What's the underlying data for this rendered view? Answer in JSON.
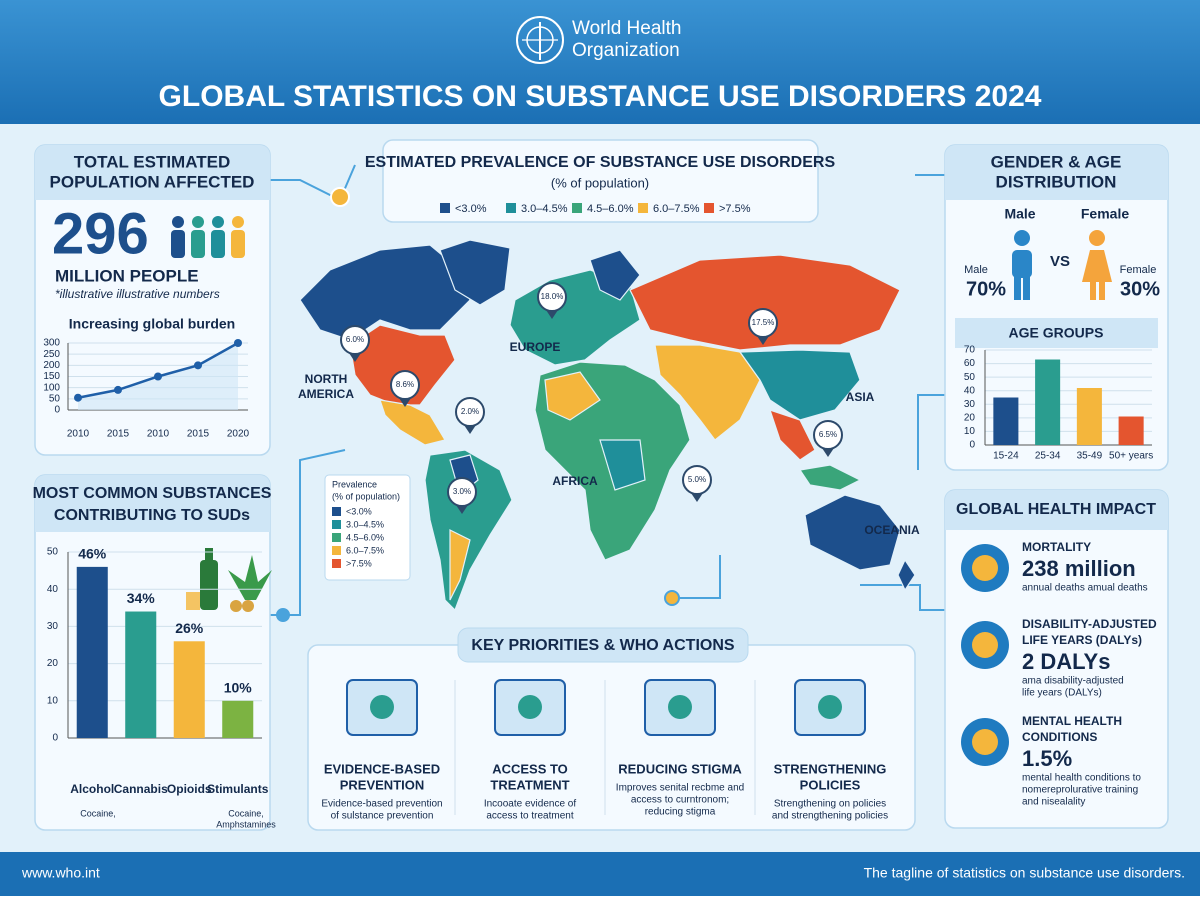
{
  "header": {
    "logo_lines": [
      "World Health",
      "Organization"
    ],
    "title": "GLOBAL STATISTICS ON SUBSTANCE USE DISORDERS 2024"
  },
  "total": {
    "title_lines": [
      "TOTAL ESTIMATED",
      "POPULATION AFFECTED"
    ],
    "number": "296",
    "unit": "MILLION PEOPLE",
    "note": "*illustrative illustrative numbers"
  },
  "substances": {
    "title_lines": [
      "MOST COMMON SUBSTANCES",
      "CONTRIBUTING TO SUDs"
    ],
    "stimulant_note_lines": [
      "Cocaine,",
      "Amphstamines"
    ]
  },
  "map": {
    "title": "ESTIMATED PREVALENCE OF SUBSTANCE USE DISORDERS",
    "subtitle": "(% of population)",
    "legend": [
      {
        "label": "<3.0%",
        "color": "#1d4f8c"
      },
      {
        "label": "3.0–4.5%",
        "color": "#1f8f9a"
      },
      {
        "label": "4.5–6.0%",
        "color": "#3aa57a"
      },
      {
        "label": "6.0–7.5%",
        "color": "#f4b63c"
      },
      {
        "label": ">7.5%",
        "color": "#e4552f"
      }
    ],
    "legend2_title_lines": [
      "Prevalence",
      "(% of population)"
    ],
    "regions": [
      "NORTH",
      "AMERICA",
      "EUROPE",
      "ASIA",
      "AFRICA",
      "OCEANIA"
    ],
    "pins": [
      "6.0%",
      "8.6%",
      "2.0%",
      "18.0%",
      "17.5%",
      "5.0%",
      "3.0%",
      "6.5%"
    ]
  },
  "gender": {
    "title_lines": [
      "GENDER & AGE",
      "DISTRIBUTION"
    ],
    "male": "Male",
    "female": "Female",
    "vs": "VS",
    "male_small": "Male",
    "male_share": "70%",
    "female_small": "Female",
    "female_share": "30%"
  },
  "impact": {
    "title": "GLOBAL HEALTH IMPACT",
    "items": [
      {
        "title_lines": [
          "MORTALITY"
        ],
        "value": "238 million",
        "desc_lines": [
          "annual deaths amual deaths"
        ]
      },
      {
        "title_lines": [
          "DISABILITY-ADJUSTED",
          "LIFE YEARS (DALYs)"
        ],
        "value": "2 DALYs",
        "desc_lines": [
          "ama disability-adjusted",
          "life years (DALYs)"
        ]
      },
      {
        "title_lines": [
          "MENTAL HEALTH",
          "CONDITIONS"
        ],
        "value": "1.5%",
        "desc_lines": [
          "mental health conditions to",
          "nomereprolurative training",
          "and nisealality"
        ]
      }
    ]
  },
  "priorities": {
    "title": "KEY PRIORITIES & WHO ACTIONS",
    "items": [
      {
        "title_lines": [
          "EVIDENCE-BASED",
          "PREVENTION"
        ],
        "desc_lines": [
          "Evidence-based prevention",
          "of sulstance prevention"
        ]
      },
      {
        "title_lines": [
          "ACCESS TO",
          "TREATMENT"
        ],
        "desc_lines": [
          "Incooate evidence of",
          "access to treatment"
        ]
      },
      {
        "title_lines": [
          "REDUCING STIGMA"
        ],
        "desc_lines": [
          "Improves senital recbme and",
          "access to curntronom;",
          "reducing stigma"
        ]
      },
      {
        "title_lines": [
          "STRENGTHENING",
          "POLICIES"
        ],
        "desc_lines": [
          "Strengthening on policies",
          "and strengthening policies"
        ]
      }
    ]
  },
  "footer": {
    "url": "www.who.int",
    "tagline": "The tagline of statistics on substance use disorders."
  },
  "chart_data": [
    {
      "type": "line",
      "title": "Increasing global burden",
      "categories": [
        "2010",
        "2015",
        "2010",
        "2015",
        "2020"
      ],
      "values": [
        55,
        90,
        150,
        200,
        300
      ],
      "color": "#1f5fa8",
      "ylim": [
        0,
        300
      ],
      "yticks": [
        0,
        50,
        100,
        150,
        200,
        250,
        300
      ],
      "grid": true
    },
    {
      "type": "bar",
      "categories": [
        "Alcohol",
        "Cannabis",
        "Opioids",
        "Stimulants"
      ],
      "values": [
        46,
        34,
        26,
        10
      ],
      "value_labels": [
        "46%",
        "34%",
        "26%",
        "10%"
      ],
      "colors": [
        "#1d4f8c",
        "#2a9d8f",
        "#f4b63c",
        "#7cb342"
      ],
      "ylim": [
        0,
        50
      ],
      "yticks": [
        0,
        10,
        20,
        30,
        40,
        50
      ],
      "grid": true
    },
    {
      "type": "bar",
      "title": "AGE GROUPS",
      "categories": [
        "15-24",
        "25-34",
        "35-49",
        "50+ years"
      ],
      "values": [
        35,
        63,
        42,
        21
      ],
      "colors": [
        "#1d4f8c",
        "#2a9d8f",
        "#f4b63c",
        "#e4552f"
      ],
      "ylim": [
        0,
        70
      ],
      "yticks": [
        0,
        10,
        20,
        30,
        40,
        50,
        60,
        70
      ],
      "grid": true
    }
  ]
}
